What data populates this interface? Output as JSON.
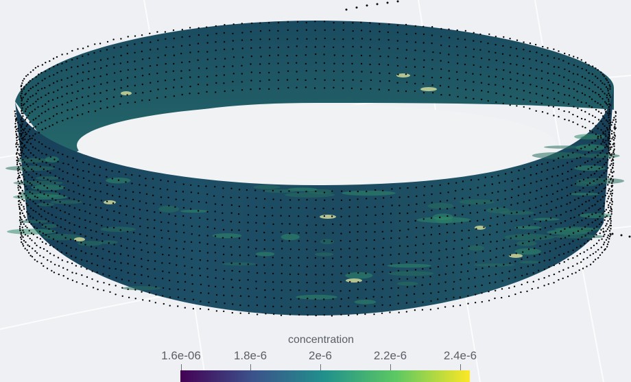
{
  "legend": {
    "title": "concentration",
    "ticks": [
      "1.6e-06",
      "1.8e-6",
      "2e-6",
      "2.2e-6",
      "2.4e-6"
    ],
    "range": [
      1.6e-06,
      2.4e-06
    ],
    "colormap": "viridis"
  },
  "colors": {
    "background": "#eef0f3",
    "band_dark": "#123a52",
    "band_mid": "#1f5c66",
    "band_light": "#2c7d6a",
    "hotspot": "#d8e0a0",
    "mesh_points": "#050505",
    "colorbar_stops": [
      "#440154",
      "#3b528b",
      "#21918c",
      "#5ec962",
      "#fde725"
    ]
  }
}
